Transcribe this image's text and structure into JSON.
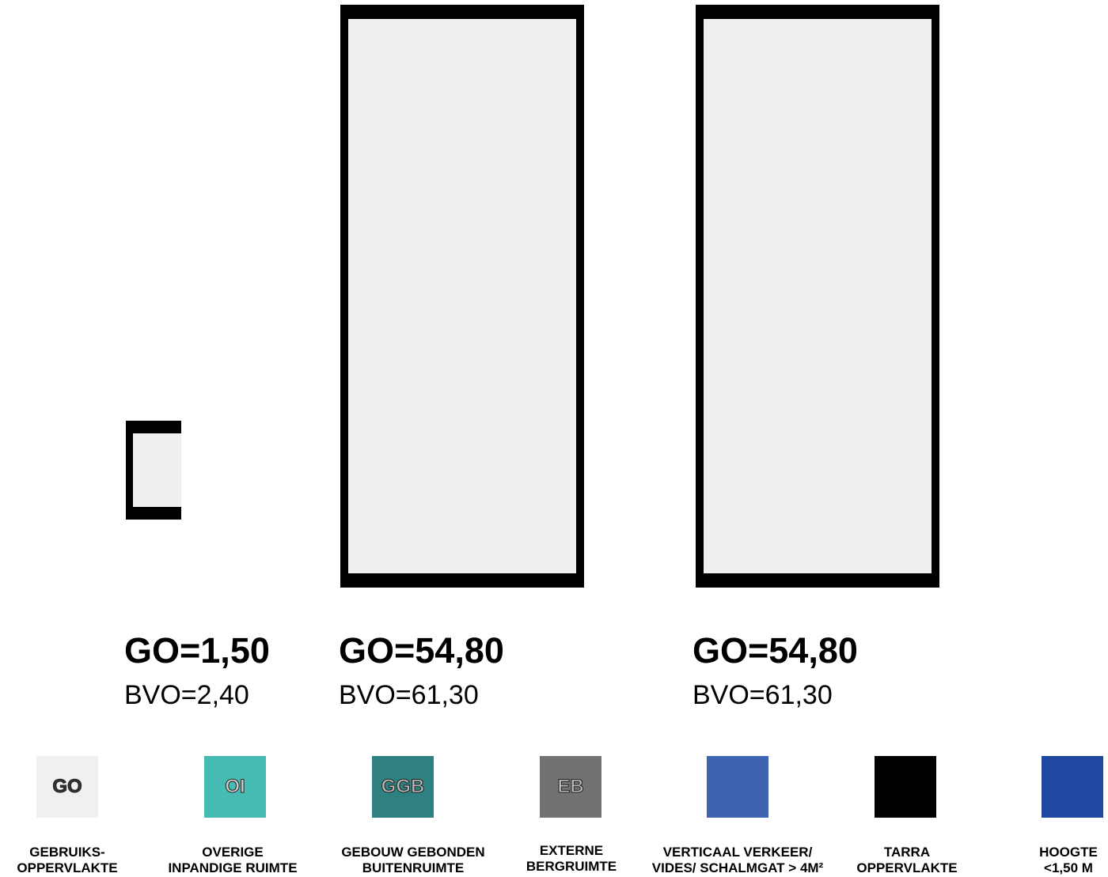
{
  "rooms": [
    {
      "go": "GO=1,50",
      "bvo": "BVO=2,40"
    },
    {
      "go": "GO=54,80",
      "bvo": "BVO=61,30"
    },
    {
      "go": "GO=54,80",
      "bvo": "BVO=61,30"
    }
  ],
  "legend": [
    {
      "code": "GO",
      "color": "#f0f0f0",
      "text_color": "#333333",
      "caption": [
        "GEBRUIKS-",
        "OPPERVLAKTE"
      ]
    },
    {
      "code": "OI",
      "color": "#45bbb3",
      "text_color": "#cfcfcf",
      "caption": [
        "OVERIGE",
        "INPANDIGE RUIMTE"
      ]
    },
    {
      "code": "GGB",
      "color": "#2f8080",
      "text_color": "#b8b8b8",
      "caption": [
        "GEBOUW GEBONDEN",
        "BUITENRUIMTE"
      ]
    },
    {
      "code": "EB",
      "color": "#727272",
      "text_color": "#b8b8b8",
      "caption": [
        "EXTERNE",
        "BERGRUIMTE"
      ]
    },
    {
      "code": "",
      "color": "#3f63b3",
      "text_color": "#ffffff",
      "caption": [
        "VERTICAAL VERKEER/",
        "VIDES/ SCHALMGAT > 4M²"
      ]
    },
    {
      "code": "",
      "color": "#000000",
      "text_color": "#ffffff",
      "caption": [
        "TARRA",
        "OPPERVLAKTE"
      ]
    },
    {
      "code": "",
      "color": "#1f48a1",
      "text_color": "#ffffff",
      "caption": [
        "HOOGTE",
        "<1,50 M"
      ]
    }
  ]
}
